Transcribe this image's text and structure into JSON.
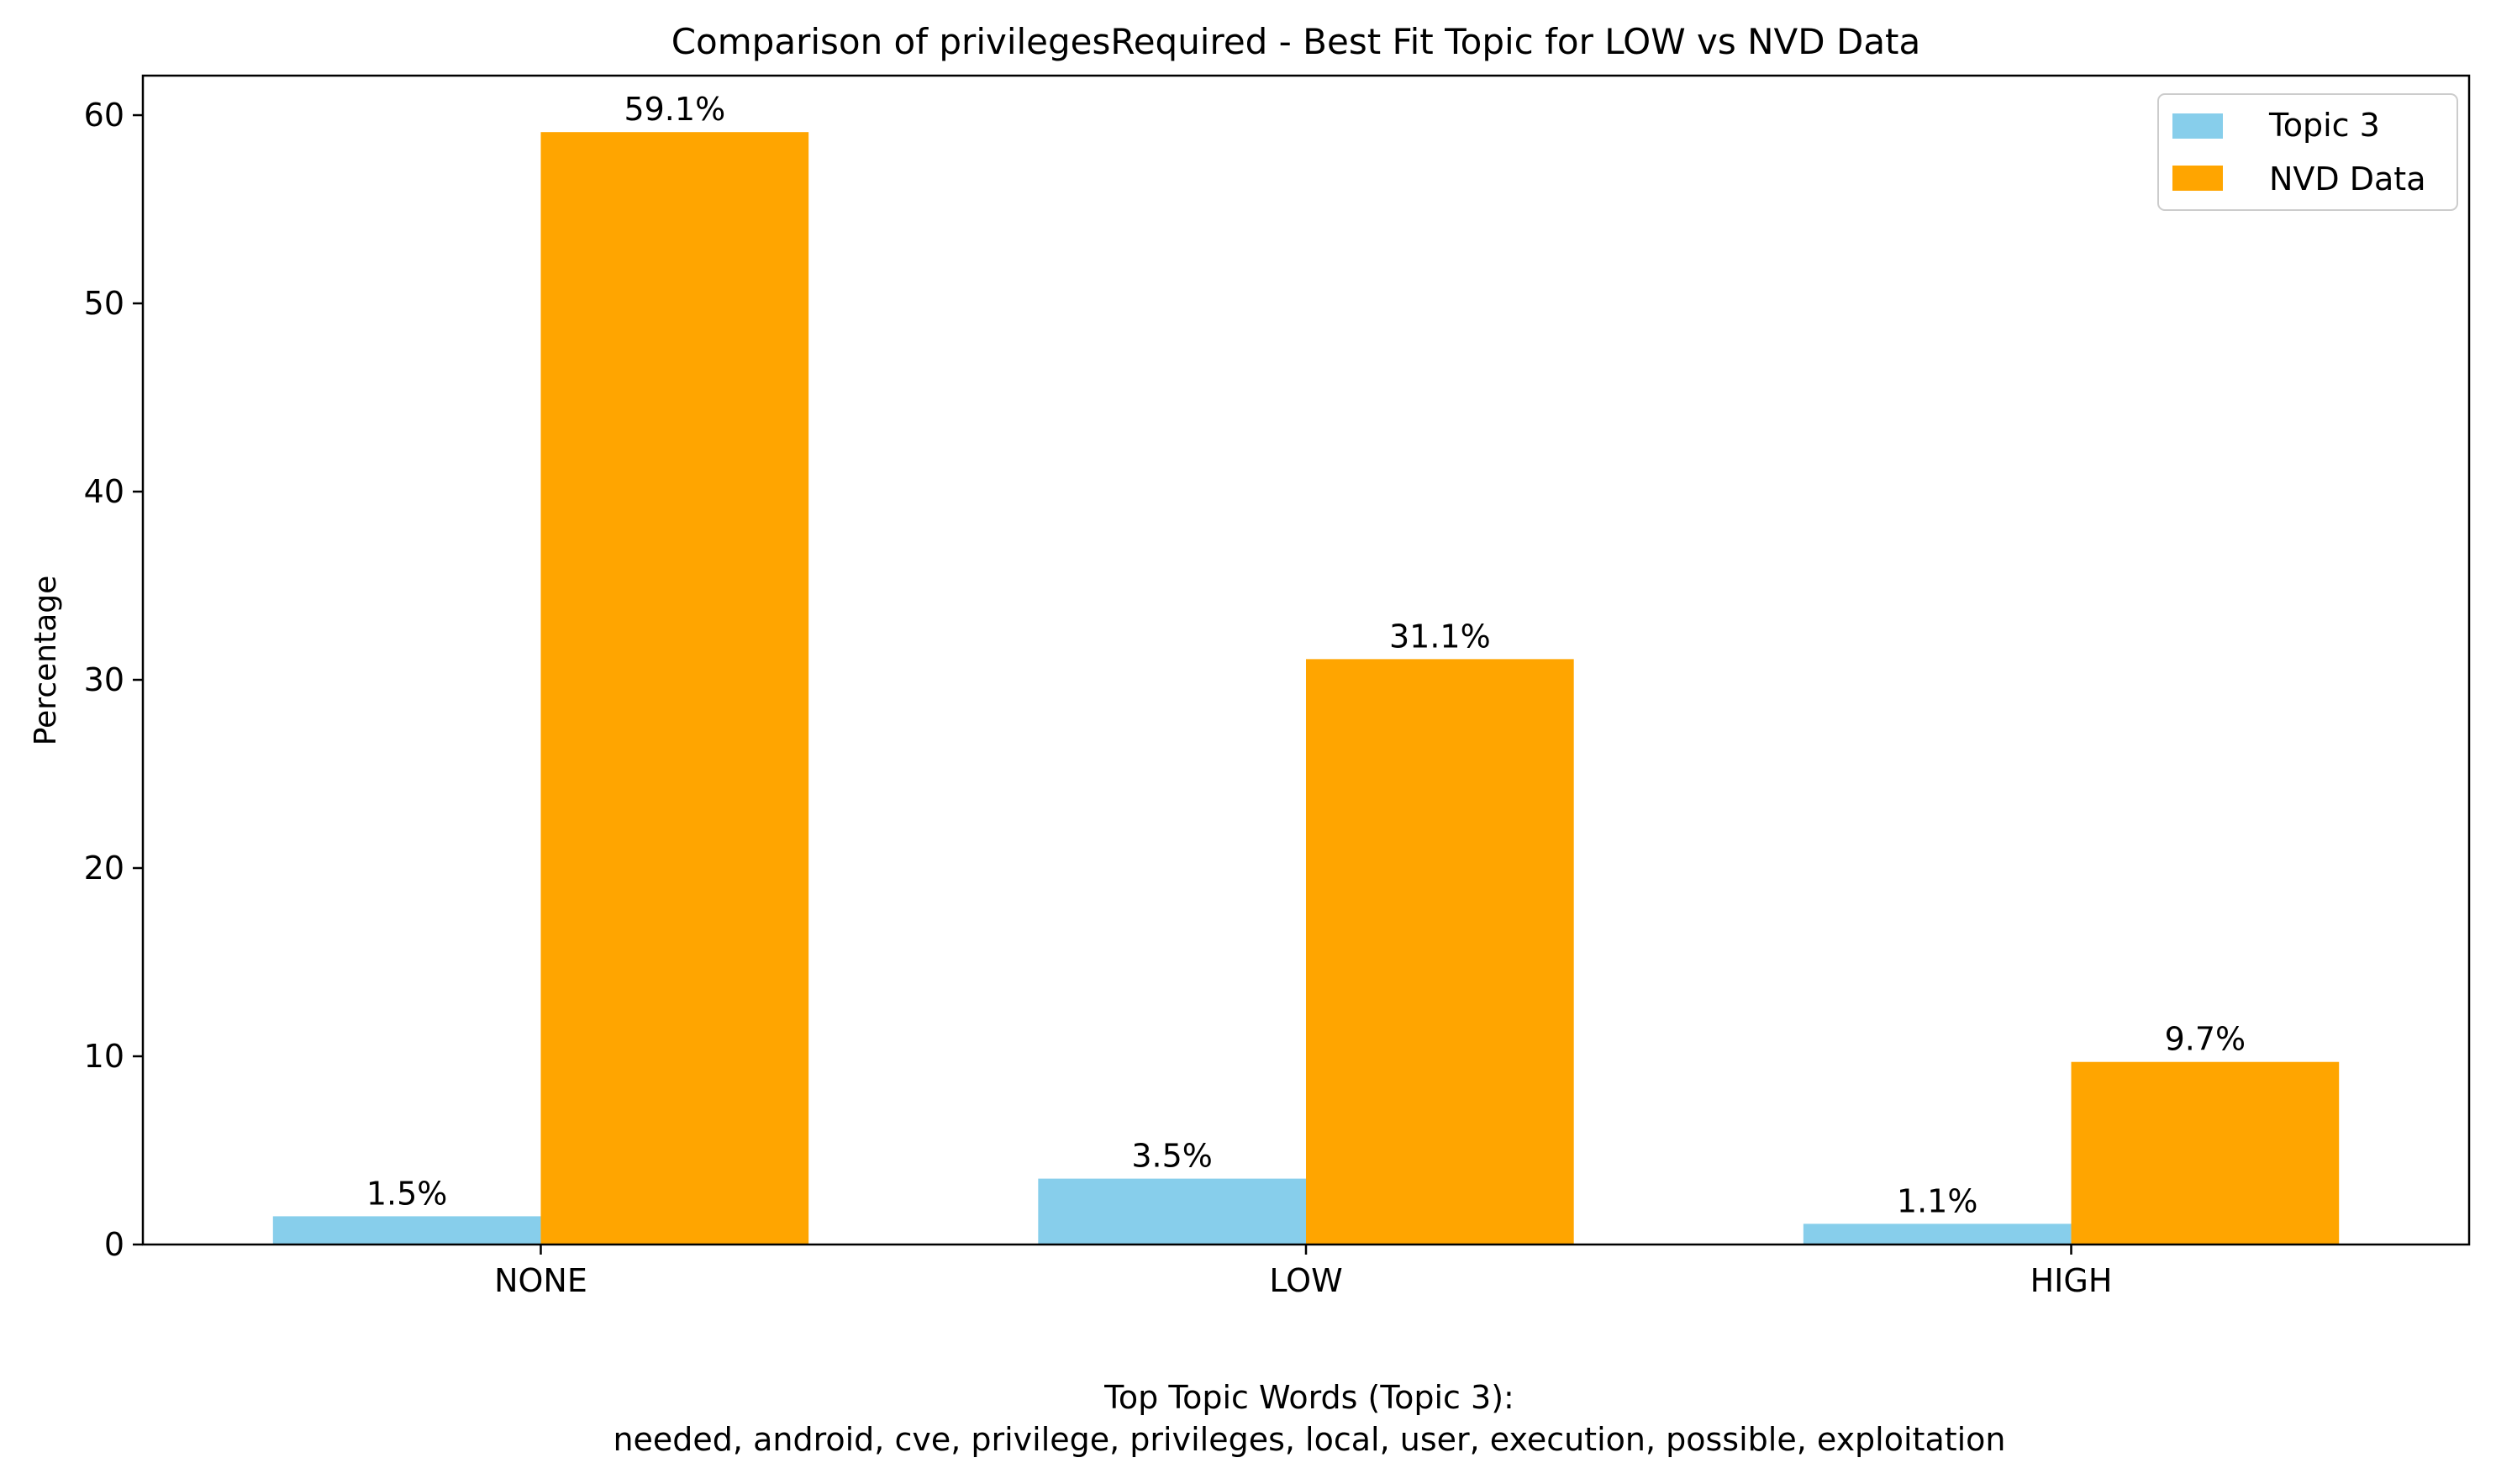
{
  "chart_data": {
    "type": "bar",
    "title": "Comparison of privilegesRequired - Best Fit Topic for LOW vs NVD Data",
    "ylabel": "Percentage",
    "xlabel_lines": [
      "Top Topic Words (Topic 3):",
      "needed,  android,  cve,  privilege,  privileges,  local,  user,  execution,  possible,  exploitation"
    ],
    "categories": [
      "NONE",
      "LOW",
      "HIGH"
    ],
    "series": [
      {
        "name": "Topic 3",
        "color": "#87CEEB",
        "values": [
          1.5,
          3.5,
          1.1
        ],
        "labels": [
          "1.5%",
          "3.5%",
          "1.1%"
        ]
      },
      {
        "name": "NVD Data",
        "color": "#FFA500",
        "values": [
          59.1,
          31.1,
          9.7
        ],
        "labels": [
          "59.1%",
          "31.1%",
          "9.7%"
        ]
      }
    ],
    "ylim": [
      0,
      62.1
    ],
    "yticks": [
      0,
      10,
      20,
      30,
      40,
      50,
      60
    ],
    "ytick_labels": [
      "0",
      "10",
      "20",
      "30",
      "40",
      "50",
      "60"
    ],
    "grid": false,
    "legend_position": "top-right"
  }
}
